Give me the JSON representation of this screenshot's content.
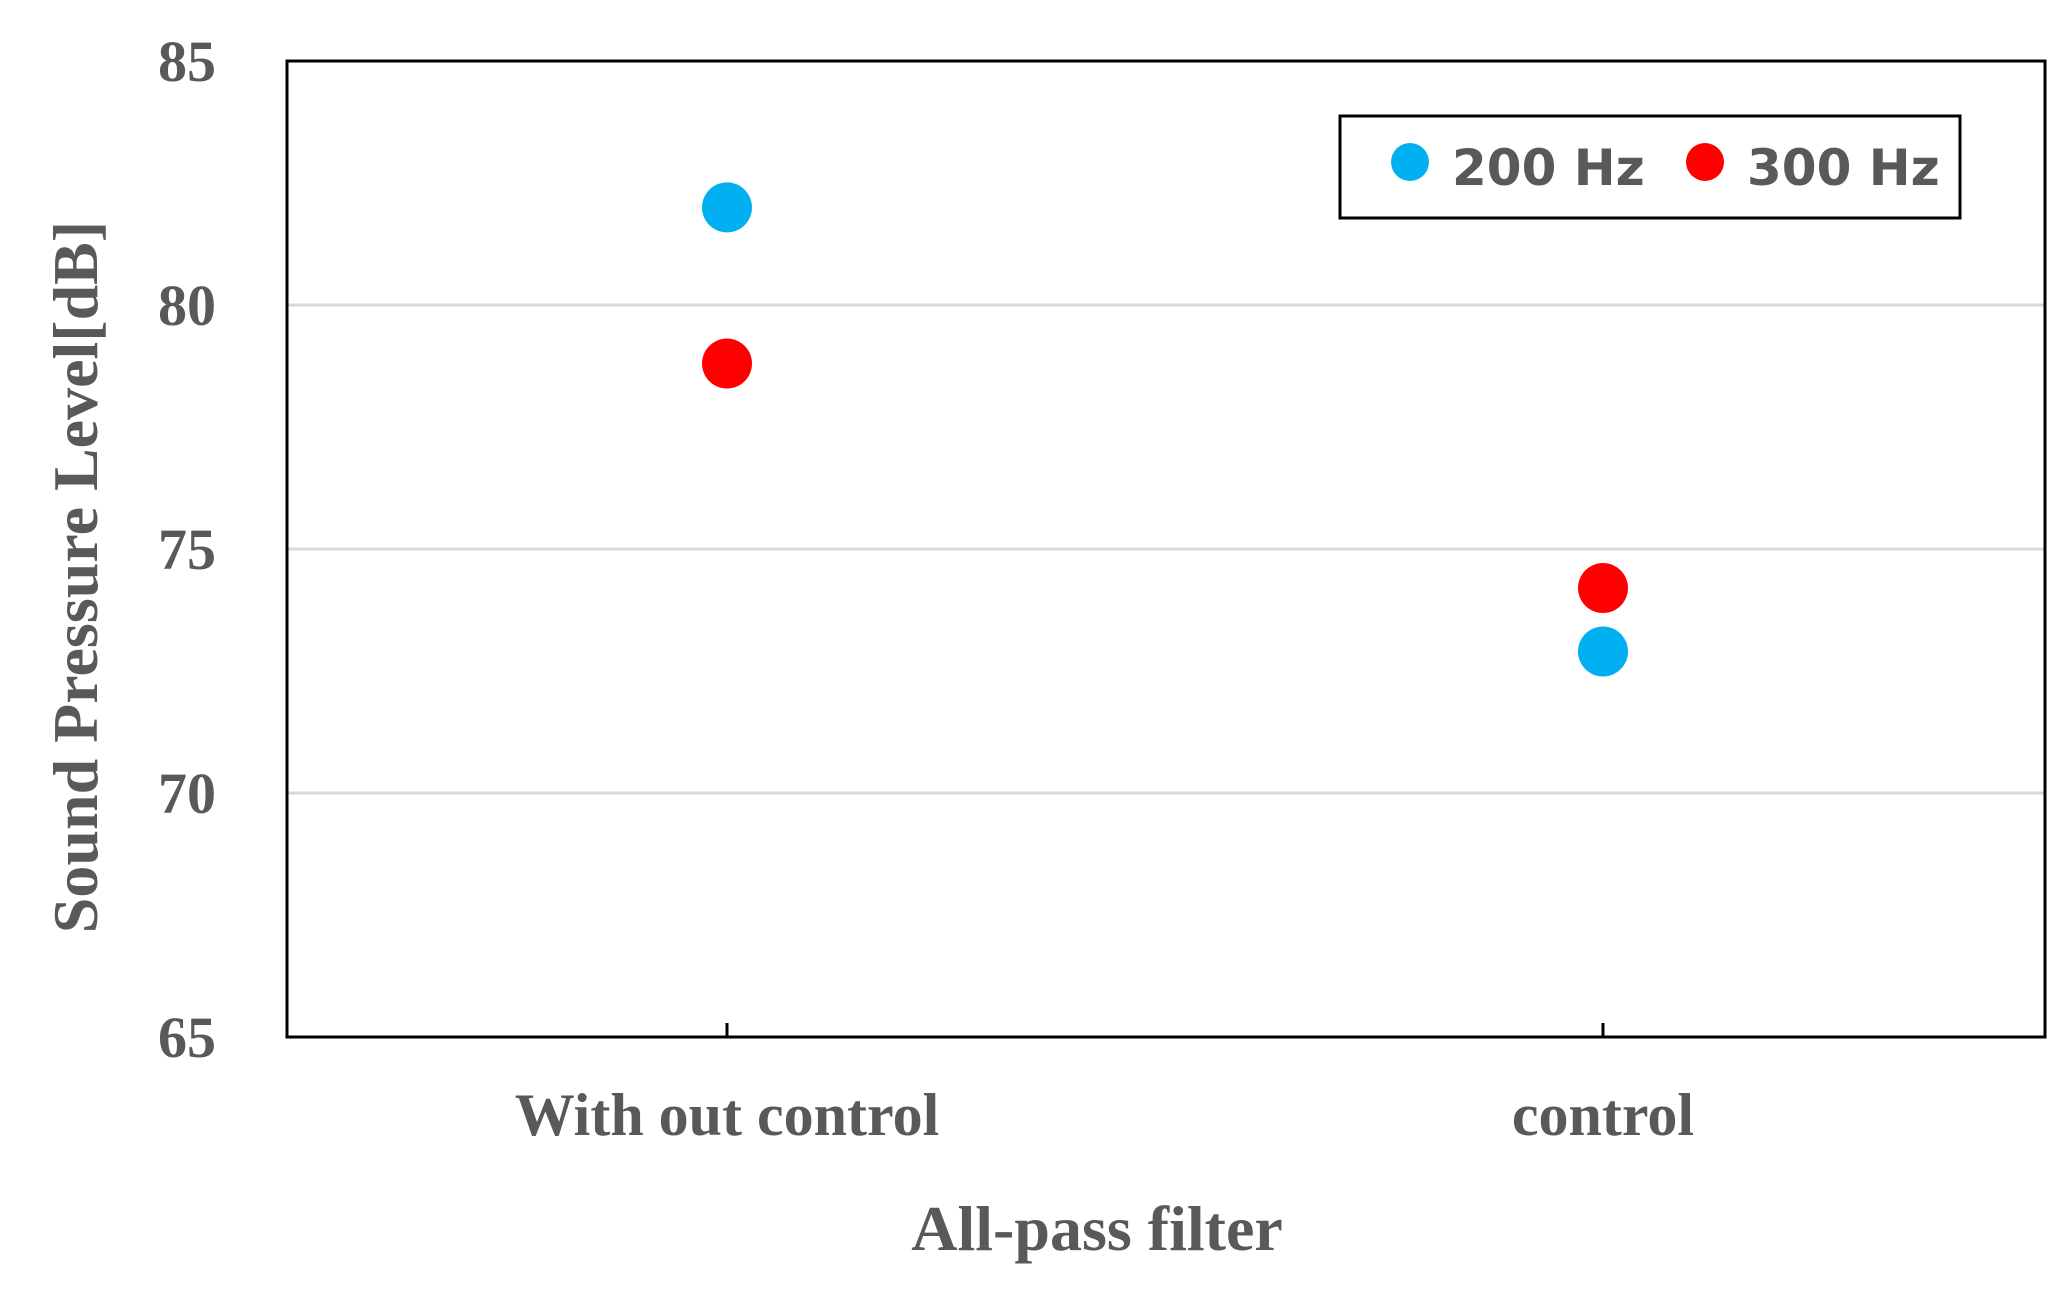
{
  "chart_data": {
    "type": "scatter",
    "title": "",
    "xlabel": "All-pass filter",
    "ylabel": "Sound Pressure Level[dB]",
    "categories": [
      "With out control",
      "control"
    ],
    "ylim": [
      65,
      85
    ],
    "yticks": [
      "65",
      "70",
      "75",
      "80",
      "85"
    ],
    "grid": true,
    "legend_position": "top-right",
    "series": [
      {
        "name": "200 Hz",
        "color": "#00B0F0",
        "values": [
          82.0,
          72.9
        ]
      },
      {
        "name": "300 Hz",
        "color": "#FF0000",
        "values": [
          78.8,
          74.2
        ]
      }
    ]
  }
}
